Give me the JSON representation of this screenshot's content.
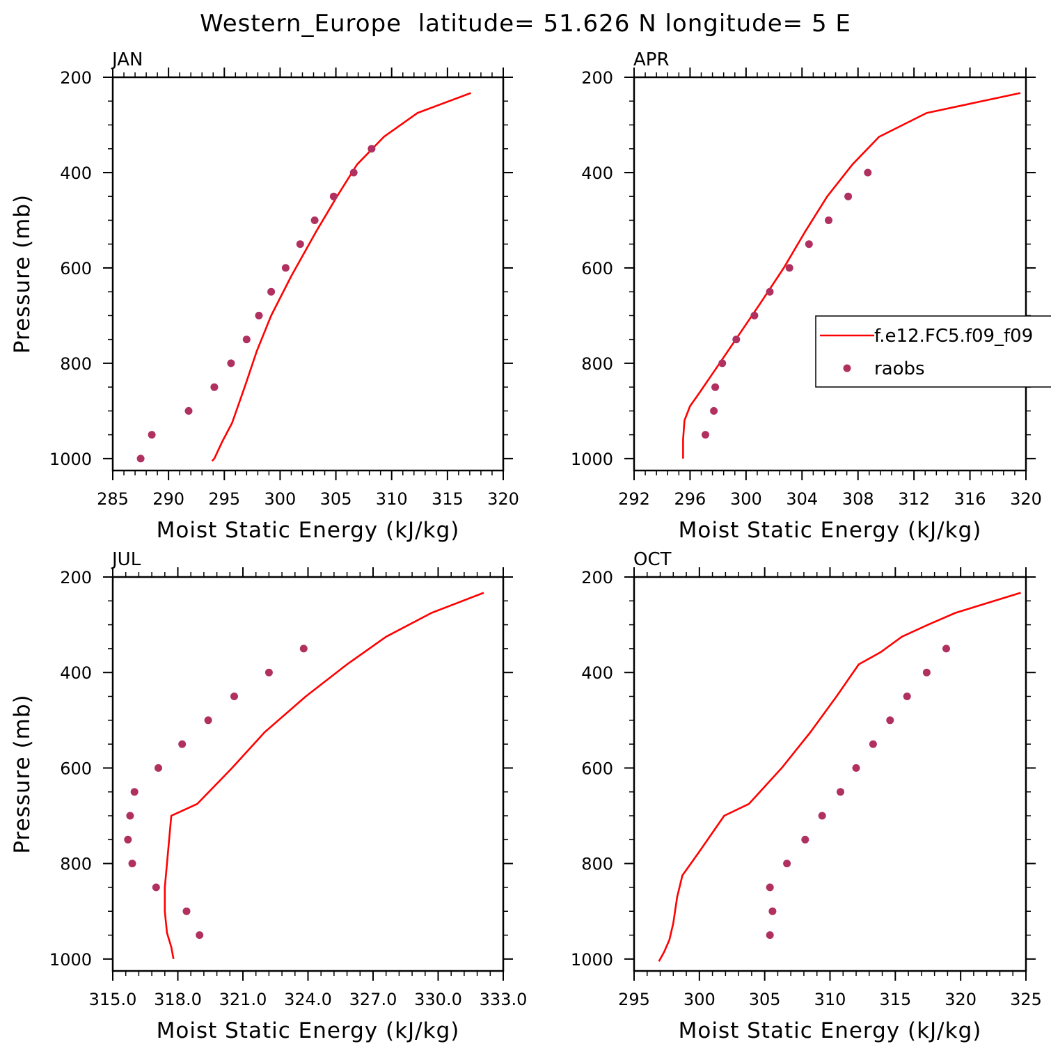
{
  "figure": {
    "title": "Western_Europe  latitude= 51.626 N longitude= 5 E"
  },
  "legend": {
    "panel": 1,
    "items": [
      {
        "label": "f.e12.FC5.f09_f09",
        "kind": "line",
        "color": "#ff0000"
      },
      {
        "label": "raobs",
        "kind": "marker",
        "color": "#b03060"
      }
    ]
  },
  "colors": {
    "model": "#ff0000",
    "obs": "#b03060",
    "axes": "#000000"
  },
  "chart_data": [
    {
      "type": "line",
      "panel_label": "JAN",
      "xlabel": "Moist Static Energy (kJ/kg)",
      "ylabel": "Pressure (mb)",
      "xlim": [
        285,
        320
      ],
      "ylim": [
        200,
        1025
      ],
      "y_inverted": true,
      "xticks": [
        285,
        290,
        295,
        300,
        305,
        310,
        315,
        320
      ],
      "xtick_labels": [
        "285",
        "290",
        "295",
        "300",
        "305",
        "310",
        "315",
        "320"
      ],
      "yticks": [
        200,
        400,
        600,
        800,
        1000
      ],
      "ytick_labels": [
        "200",
        "400",
        "600",
        "800",
        "1000"
      ],
      "series": [
        {
          "name": "f.e12.FC5.f09_f09",
          "style": "line",
          "x": [
            317.1,
            312.3,
            309.3,
            306.9,
            305.1,
            303.2,
            301.0,
            299.2,
            297.9,
            296.9,
            295.7,
            294.8,
            294.1,
            293.9
          ],
          "y": [
            233,
            275,
            325,
            383,
            450,
            525,
            617,
            700,
            775,
            845,
            925,
            965,
            1000,
            1005
          ]
        },
        {
          "name": "raobs",
          "style": "marker",
          "x": [
            308.2,
            306.6,
            304.8,
            303.1,
            301.8,
            300.5,
            299.2,
            298.1,
            297.0,
            295.6,
            294.1,
            291.8,
            288.5,
            287.5
          ],
          "y": [
            350,
            400,
            450,
            500,
            550,
            600,
            650,
            700,
            750,
            800,
            850,
            900,
            950,
            1000
          ]
        }
      ]
    },
    {
      "type": "line",
      "panel_label": "APR",
      "xlabel": "Moist Static Energy (kJ/kg)",
      "ylabel": "",
      "xlim": [
        292,
        320
      ],
      "ylim": [
        200,
        1025
      ],
      "y_inverted": true,
      "xticks": [
        292,
        296,
        300,
        304,
        308,
        312,
        316,
        320
      ],
      "xtick_labels": [
        "292",
        "296",
        "300",
        "304",
        "308",
        "312",
        "316",
        "320"
      ],
      "yticks": [
        200,
        400,
        600,
        800,
        1000
      ],
      "ytick_labels": [
        "200",
        "400",
        "600",
        "800",
        "1000"
      ],
      "series": [
        {
          "name": "f.e12.FC5.f09_f09",
          "style": "line",
          "x": [
            319.6,
            312.9,
            309.5,
            307.6,
            305.8,
            304.2,
            302.7,
            301.0,
            299.5,
            298.0,
            296.6,
            296.0,
            295.6,
            295.5,
            295.5
          ],
          "y": [
            233,
            275,
            325,
            383,
            450,
            525,
            600,
            675,
            740,
            805,
            865,
            890,
            920,
            960,
            1000
          ]
        },
        {
          "name": "raobs",
          "style": "marker",
          "x": [
            308.7,
            307.3,
            305.9,
            304.5,
            303.1,
            301.7,
            300.6,
            299.3,
            298.3,
            297.8,
            297.7,
            297.1
          ],
          "y": [
            400,
            450,
            500,
            550,
            600,
            650,
            700,
            750,
            800,
            850,
            900,
            950
          ]
        }
      ]
    },
    {
      "type": "line",
      "panel_label": "JUL",
      "xlabel": "Moist Static Energy (kJ/kg)",
      "ylabel": "Pressure (mb)",
      "xlim": [
        315,
        333
      ],
      "ylim": [
        200,
        1025
      ],
      "y_inverted": true,
      "xticks": [
        315,
        318,
        321,
        324,
        327,
        330,
        333
      ],
      "xtick_labels": [
        "315.0",
        "318.0",
        "321.0",
        "324.0",
        "327.0",
        "330.0",
        "333.0"
      ],
      "yticks": [
        200,
        400,
        600,
        800,
        1000
      ],
      "ytick_labels": [
        "200",
        "400",
        "600",
        "800",
        "1000"
      ],
      "series": [
        {
          "name": "f.e12.FC5.f09_f09",
          "style": "line",
          "x": [
            332.1,
            329.7,
            327.6,
            325.8,
            323.9,
            322.0,
            320.5,
            318.9,
            317.7,
            317.5,
            317.4,
            317.4,
            317.5,
            317.7,
            317.8
          ],
          "y": [
            233,
            275,
            325,
            383,
            450,
            525,
            600,
            675,
            700,
            800,
            850,
            900,
            945,
            975,
            1000
          ]
        },
        {
          "name": "raobs",
          "style": "marker",
          "x": [
            323.8,
            322.2,
            320.6,
            319.4,
            318.2,
            317.1,
            316.0,
            315.8,
            315.7,
            315.9,
            317.0,
            318.4,
            319.0
          ],
          "y": [
            350,
            400,
            450,
            500,
            550,
            600,
            650,
            700,
            750,
            800,
            850,
            900,
            950
          ]
        }
      ]
    },
    {
      "type": "line",
      "panel_label": "OCT",
      "xlabel": "Moist Static Energy (kJ/kg)",
      "ylabel": "",
      "xlim": [
        295,
        325
      ],
      "ylim": [
        200,
        1025
      ],
      "y_inverted": true,
      "xticks": [
        295,
        300,
        305,
        310,
        315,
        320,
        325
      ],
      "xtick_labels": [
        "295",
        "300",
        "305",
        "310",
        "315",
        "320",
        "325"
      ],
      "yticks": [
        200,
        400,
        600,
        800,
        1000
      ],
      "ytick_labels": [
        "200",
        "400",
        "600",
        "800",
        "1000"
      ],
      "series": [
        {
          "name": "f.e12.FC5.f09_f09",
          "style": "line",
          "x": [
            324.6,
            319.6,
            317.5,
            315.5,
            313.9,
            312.2,
            310.5,
            308.5,
            306.3,
            303.8,
            301.9,
            300.0,
            298.7,
            298.3,
            298.0,
            297.7,
            297.3,
            296.9
          ],
          "y": [
            233,
            275,
            300,
            325,
            357,
            383,
            450,
            525,
            600,
            675,
            700,
            775,
            825,
            870,
            925,
            960,
            985,
            1005
          ]
        },
        {
          "name": "raobs",
          "style": "marker",
          "x": [
            318.9,
            317.4,
            315.9,
            314.6,
            313.3,
            312.0,
            310.8,
            309.4,
            308.1,
            306.7,
            305.4,
            305.6,
            305.4
          ],
          "y": [
            350,
            400,
            450,
            500,
            550,
            600,
            650,
            700,
            750,
            800,
            850,
            900,
            950
          ]
        }
      ]
    }
  ]
}
